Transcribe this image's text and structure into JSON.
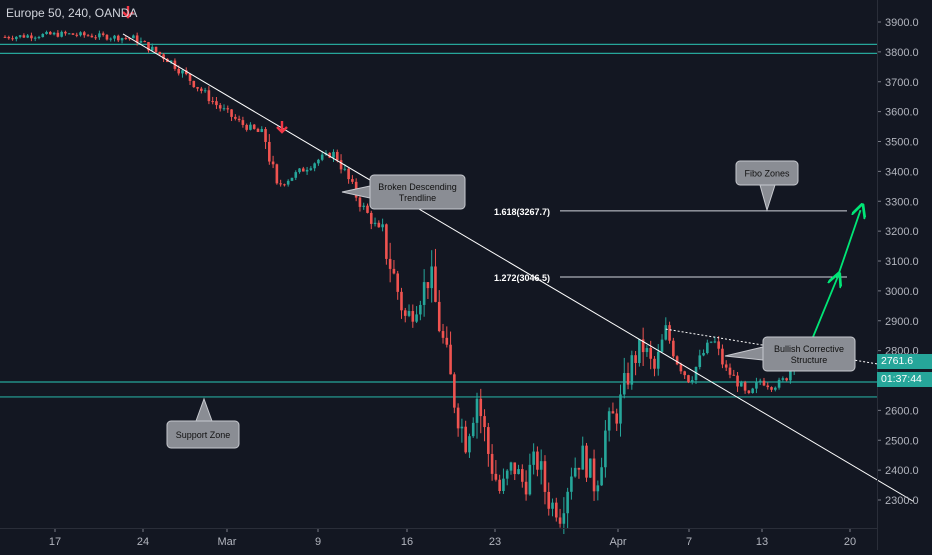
{
  "header": {
    "symbol": "Europe 50, 240, OANDA"
  },
  "price_axis": {
    "ticks": [
      "3900.0",
      "3800.0",
      "3700.0",
      "3600.0",
      "3500.0",
      "3400.0",
      "3300.0",
      "3200.0",
      "3100.0",
      "3000.0",
      "2900.0",
      "2800.0",
      "2600.0",
      "2500.0",
      "2400.0",
      "2300.0"
    ],
    "last_price": "2761.6",
    "countdown": "01:37:44"
  },
  "time_axis": {
    "ticks": [
      "17",
      "24",
      "Mar",
      "9",
      "16",
      "23",
      "Apr",
      "7",
      "13",
      "20"
    ]
  },
  "annotations": {
    "broken_trendline": "Broken Descending Trendline",
    "fibo_zones": "Fibo Zones",
    "bullish_structure": "Bullish Corrective Structure",
    "support_zone": "Support Zone",
    "fib_1618": "1.618(3267.7)",
    "fib_1272": "1.272(3046.5)"
  },
  "colors": {
    "background": "#131722",
    "up": "#26a69a",
    "down": "#ef5350",
    "zone_line": "#26a69a",
    "trendline": "#ffffff",
    "projection_arrow": "#00e676",
    "signal_arrow": "#f23645",
    "callout_bg": "#8a8d94"
  },
  "chart_data": {
    "type": "candlestick",
    "title": "Europe 50, 240, OANDA",
    "ylim": [
      2235,
      3950
    ],
    "x_ticks": [
      "17",
      "24",
      "Mar",
      "9",
      "16",
      "23",
      "Apr",
      "7",
      "13",
      "20"
    ],
    "close_path": [
      {
        "t": 0,
        "close": 3850
      },
      {
        "t": 5,
        "close": 3860
      },
      {
        "t": 11,
        "close": 3845
      },
      {
        "t": 14,
        "close": 3770
      },
      {
        "t": 18,
        "close": 3620
      },
      {
        "t": 20,
        "close": 3560
      },
      {
        "t": 22,
        "close": 3520
      },
      {
        "t": 23,
        "close": 3350
      },
      {
        "t": 25,
        "close": 3400
      },
      {
        "t": 27,
        "close": 3450
      },
      {
        "t": 28,
        "close": 3460
      },
      {
        "t": 29,
        "close": 3380
      },
      {
        "t": 30,
        "close": 3300
      },
      {
        "t": 32,
        "close": 3180
      },
      {
        "t": 34,
        "close": 2900
      },
      {
        "t": 36,
        "close": 3050
      },
      {
        "t": 37,
        "close": 2850
      },
      {
        "t": 38,
        "close": 2650
      },
      {
        "t": 39,
        "close": 2500
      },
      {
        "t": 40,
        "close": 2650
      },
      {
        "t": 41,
        "close": 2450
      },
      {
        "t": 42,
        "close": 2320
      },
      {
        "t": 43,
        "close": 2420
      },
      {
        "t": 44,
        "close": 2350
      },
      {
        "t": 45,
        "close": 2450
      },
      {
        "t": 46,
        "close": 2300
      },
      {
        "t": 47,
        "close": 2260
      },
      {
        "t": 48,
        "close": 2400
      },
      {
        "t": 49,
        "close": 2450
      },
      {
        "t": 50,
        "close": 2350
      },
      {
        "t": 51,
        "close": 2550
      },
      {
        "t": 52,
        "close": 2600
      },
      {
        "t": 53,
        "close": 2750
      },
      {
        "t": 54,
        "close": 2820
      },
      {
        "t": 55,
        "close": 2730
      },
      {
        "t": 56,
        "close": 2870
      },
      {
        "t": 57,
        "close": 2760
      },
      {
        "t": 58,
        "close": 2700
      },
      {
        "t": 59,
        "close": 2780
      },
      {
        "t": 60,
        "close": 2840
      },
      {
        "t": 61,
        "close": 2740
      },
      {
        "t": 62,
        "close": 2700
      },
      {
        "t": 63,
        "close": 2640
      },
      {
        "t": 64,
        "close": 2700
      },
      {
        "t": 65,
        "close": 2680
      },
      {
        "t": 66,
        "close": 2700
      },
      {
        "t": 67,
        "close": 2762
      }
    ],
    "resistance_zone": [
      3795,
      3825
    ],
    "support_zone": [
      2645,
      2695
    ],
    "descending_trendline": [
      {
        "t": 10,
        "price": 3860
      },
      {
        "t": 77,
        "price": 2295
      }
    ],
    "corrective_trendline": [
      {
        "t": 56,
        "price": 2872
      },
      {
        "t": 74,
        "price": 2755
      }
    ],
    "fib_levels": [
      {
        "ratio": "1.618",
        "price": 3267.7
      },
      {
        "ratio": "1.272",
        "price": 3046.5
      }
    ],
    "projection": [
      {
        "t": 68,
        "price": 2800
      },
      {
        "t": 70.5,
        "price": 3040
      },
      {
        "t": 72.5,
        "price": 3270
      }
    ],
    "last_price": 2761.6
  }
}
